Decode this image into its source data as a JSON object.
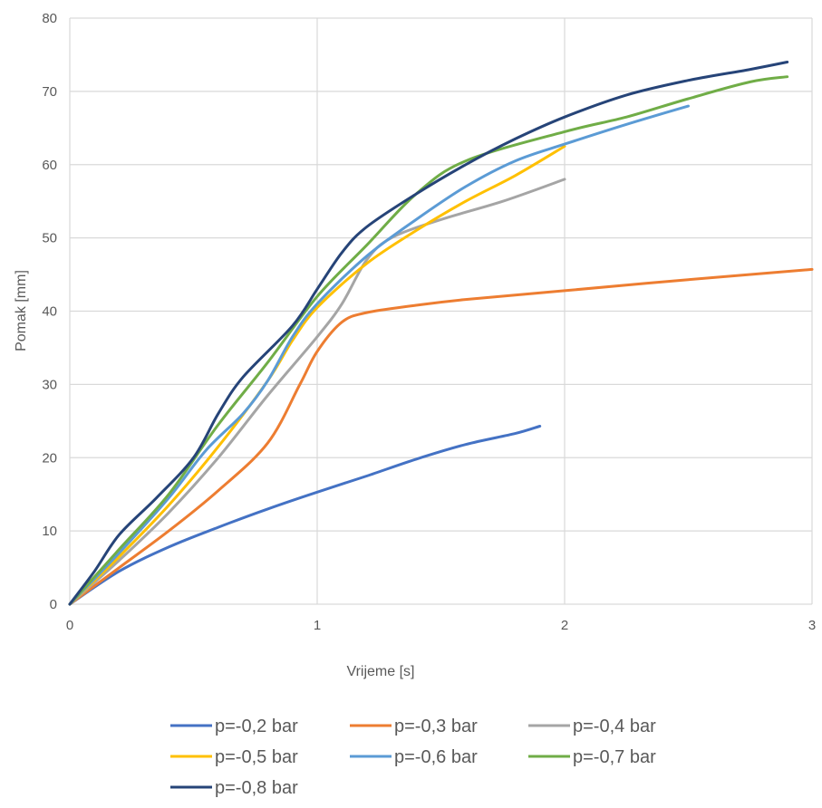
{
  "chart_data": {
    "type": "line",
    "title": "",
    "xlabel": "Vrijeme [s]",
    "ylabel": "Pomak [mm]",
    "xlim": [
      0,
      3
    ],
    "ylim": [
      0,
      80
    ],
    "x_ticks": [
      0,
      1,
      2,
      3
    ],
    "x_tick_labels": [
      "0",
      "1",
      "2",
      "3"
    ],
    "y_ticks": [
      0,
      10,
      20,
      30,
      40,
      50,
      60,
      70,
      80
    ],
    "y_tick_labels": [
      "0",
      "10",
      "20",
      "30",
      "40",
      "50",
      "60",
      "70",
      "80"
    ],
    "grid": true,
    "legend_position": "bottom",
    "series": [
      {
        "name": "p=-0,2 bar",
        "color": "#4472C4",
        "points": [
          [
            0,
            0
          ],
          [
            0.2,
            4.5
          ],
          [
            0.4,
            7.8
          ],
          [
            0.6,
            10.5
          ],
          [
            0.8,
            13
          ],
          [
            1.0,
            15.3
          ],
          [
            1.2,
            17.5
          ],
          [
            1.4,
            19.8
          ],
          [
            1.6,
            21.8
          ],
          [
            1.8,
            23.3
          ],
          [
            1.9,
            24.3
          ]
        ]
      },
      {
        "name": "p=-0,3 bar",
        "color": "#ED7D31",
        "points": [
          [
            0,
            0
          ],
          [
            0.2,
            5
          ],
          [
            0.4,
            10
          ],
          [
            0.6,
            15.5
          ],
          [
            0.8,
            22
          ],
          [
            0.93,
            30
          ],
          [
            1.0,
            34.5
          ],
          [
            1.1,
            38.5
          ],
          [
            1.2,
            39.8
          ],
          [
            1.4,
            40.8
          ],
          [
            1.6,
            41.6
          ],
          [
            2.0,
            42.8
          ],
          [
            2.5,
            44.3
          ],
          [
            3.0,
            45.7
          ]
        ]
      },
      {
        "name": "p=-0,4 bar",
        "color": "#A5A5A5",
        "points": [
          [
            0,
            0
          ],
          [
            0.2,
            6
          ],
          [
            0.4,
            12.5
          ],
          [
            0.6,
            20
          ],
          [
            0.8,
            28.5
          ],
          [
            1.0,
            36.5
          ],
          [
            1.1,
            41
          ],
          [
            1.2,
            47
          ],
          [
            1.3,
            50
          ],
          [
            1.5,
            52.5
          ],
          [
            1.75,
            55
          ],
          [
            2.0,
            58
          ]
        ]
      },
      {
        "name": "p=-0,5 bar",
        "color": "#FFC000",
        "points": [
          [
            0,
            0
          ],
          [
            0.2,
            6.5
          ],
          [
            0.4,
            13.5
          ],
          [
            0.6,
            21.5
          ],
          [
            0.8,
            30.5
          ],
          [
            0.9,
            36
          ],
          [
            1.0,
            40.5
          ],
          [
            1.2,
            46.5
          ],
          [
            1.4,
            51
          ],
          [
            1.6,
            55
          ],
          [
            1.8,
            58.5
          ],
          [
            2.0,
            62.5
          ]
        ]
      },
      {
        "name": "p=-0,6 bar",
        "color": "#5B9BD5",
        "points": [
          [
            0,
            0
          ],
          [
            0.2,
            7
          ],
          [
            0.4,
            14.5
          ],
          [
            0.55,
            21
          ],
          [
            0.7,
            26
          ],
          [
            0.8,
            30.5
          ],
          [
            0.9,
            36.5
          ],
          [
            1.0,
            41
          ],
          [
            1.2,
            47.5
          ],
          [
            1.4,
            52.5
          ],
          [
            1.6,
            57
          ],
          [
            1.8,
            60.5
          ],
          [
            2.0,
            62.8
          ],
          [
            2.25,
            65.5
          ],
          [
            2.5,
            68
          ]
        ]
      },
      {
        "name": "p=-0,7 bar",
        "color": "#70AD47",
        "points": [
          [
            0,
            0
          ],
          [
            0.2,
            7.5
          ],
          [
            0.4,
            15
          ],
          [
            0.6,
            24.5
          ],
          [
            0.8,
            33
          ],
          [
            1.0,
            42
          ],
          [
            1.2,
            49
          ],
          [
            1.4,
            56
          ],
          [
            1.6,
            60.5
          ],
          [
            2.0,
            64.5
          ],
          [
            2.25,
            66.5
          ],
          [
            2.5,
            69
          ],
          [
            2.75,
            71.3
          ],
          [
            2.9,
            72
          ]
        ]
      },
      {
        "name": "p=-0,8 bar",
        "color": "#264478",
        "points": [
          [
            0,
            0
          ],
          [
            0.1,
            4.5
          ],
          [
            0.2,
            9.5
          ],
          [
            0.35,
            14.5
          ],
          [
            0.5,
            20
          ],
          [
            0.6,
            26
          ],
          [
            0.7,
            31
          ],
          [
            0.9,
            38
          ],
          [
            1.0,
            43
          ],
          [
            1.1,
            48
          ],
          [
            1.2,
            51.5
          ],
          [
            1.4,
            56
          ],
          [
            1.6,
            60
          ],
          [
            1.8,
            63.5
          ],
          [
            2.0,
            66.5
          ],
          [
            2.25,
            69.5
          ],
          [
            2.5,
            71.5
          ],
          [
            2.75,
            73
          ],
          [
            2.9,
            74
          ]
        ]
      }
    ]
  }
}
